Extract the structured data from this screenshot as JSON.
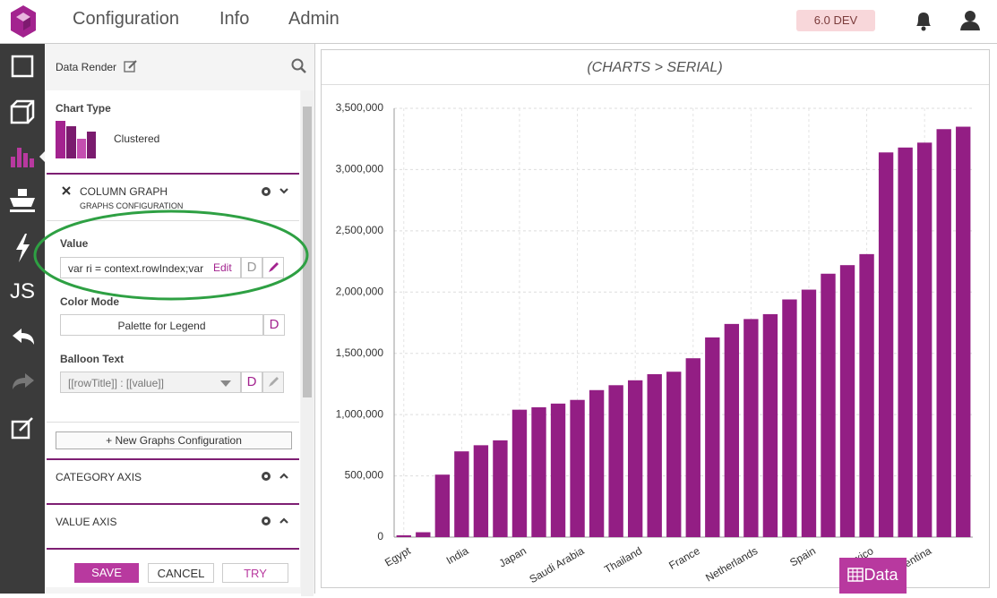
{
  "nav": {
    "items": [
      "Configuration",
      "Info",
      "Admin"
    ],
    "version": "6.0 DEV"
  },
  "sidebar": {
    "js": "JS"
  },
  "panel": {
    "title": "Data Render",
    "chart_type_label": "Chart Type",
    "chart_type": "Clustered",
    "graph": {
      "title": "COLUMN GRAPH",
      "subtitle": "GRAPHS CONFIGURATION"
    },
    "fields": [
      {
        "label": "Value",
        "input": "var ri = context.rowIndex;var",
        "action": "Edit",
        "d": "D"
      },
      {
        "label": "Color Mode",
        "input": "Palette for Legend",
        "d": "D"
      },
      {
        "label": "Balloon Text",
        "input": "[[rowTitle]] : [[value]]",
        "d": "D"
      }
    ],
    "new_button": "+ New Graphs Configuration",
    "sections": [
      "CATEGORY AXIS",
      "VALUE AXIS"
    ],
    "buttons": [
      "SAVE",
      "CANCEL",
      "TRY"
    ]
  },
  "chart_data": {
    "type": "bar",
    "title": "(CHARTS > SERIAL)",
    "categories": [
      "Egypt",
      null,
      null,
      "India",
      null,
      null,
      "Japan",
      null,
      null,
      "Saudi Arabia",
      null,
      null,
      "Thailand",
      null,
      null,
      "France",
      null,
      null,
      "Netherlands",
      null,
      null,
      "Spain",
      null,
      null,
      "Mexico",
      null,
      null,
      "Argentina",
      null,
      null
    ],
    "values": [
      15000,
      40000,
      510000,
      700000,
      750000,
      790000,
      1040000,
      1060000,
      1090000,
      1120000,
      1200000,
      1240000,
      1280000,
      1330000,
      1350000,
      1460000,
      1630000,
      1740000,
      1780000,
      1820000,
      1940000,
      2020000,
      2150000,
      2220000,
      2310000,
      3140000,
      3180000,
      3220000,
      3330000,
      3350000
    ],
    "color": "#931e84",
    "ylim": [
      0,
      3500000
    ],
    "yticks": [
      0,
      {
        "value": 500000,
        "label": "500,000"
      },
      {
        "value": 1000000,
        "label": "1,000,000"
      },
      {
        "value": 1500000,
        "label": "1,500,000"
      },
      {
        "value": 2000000,
        "label": "2,000,000"
      },
      {
        "value": 2500000,
        "label": "2,500,000"
      },
      {
        "value": 3000000,
        "label": "3,000,000"
      },
      {
        "value": 3500000,
        "label": "3,500,000"
      }
    ],
    "grid": true
  },
  "data_button": "Data"
}
